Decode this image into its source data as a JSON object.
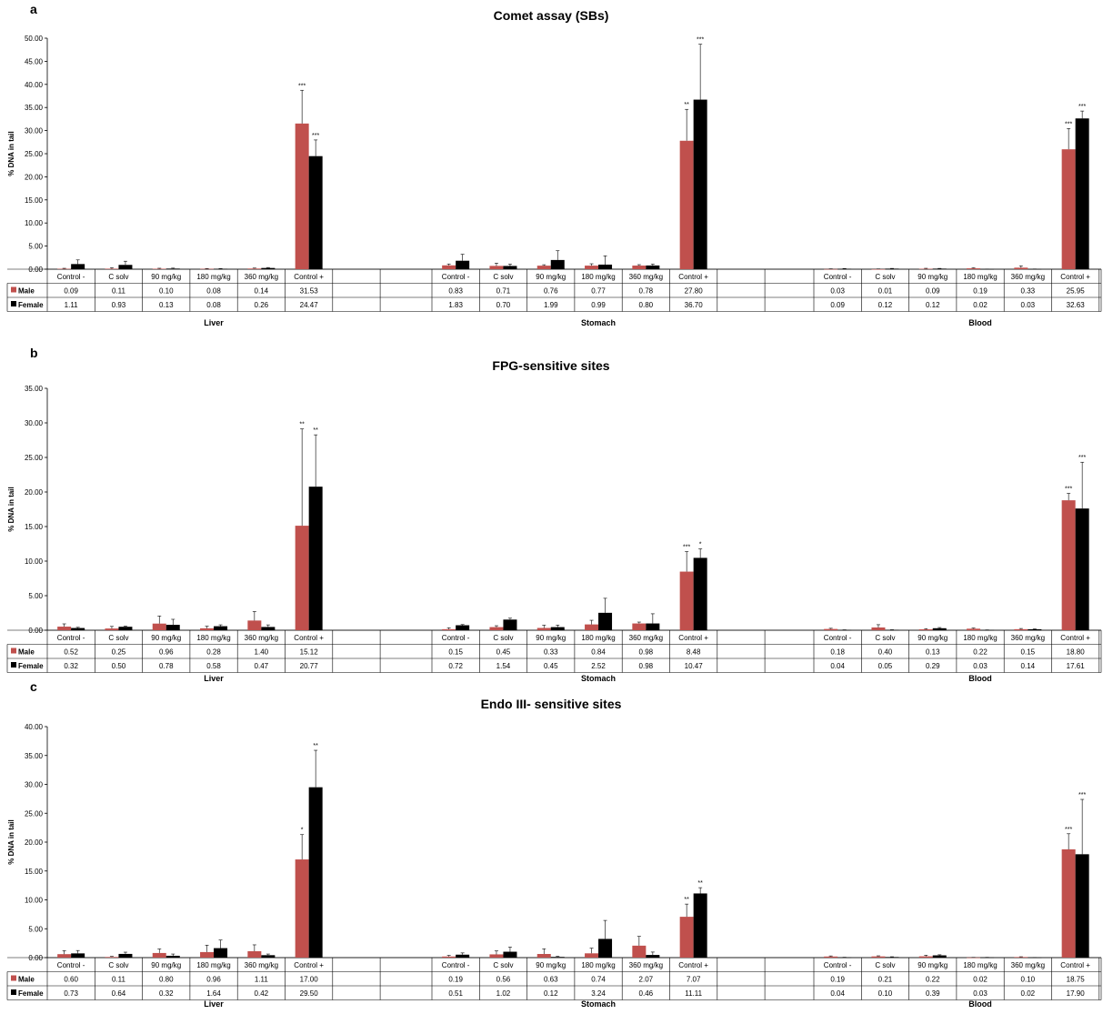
{
  "colors": {
    "male": "#c0504d",
    "female": "#000000",
    "grid": "#000000"
  },
  "chart_data": [
    {
      "type": "bar",
      "panel_letter": "a",
      "title": "Comet assay (SBs)",
      "ylabel": "% DNA in tail",
      "ylim": [
        0,
        50
      ],
      "yticks": [
        "0.00",
        "5.00",
        "10.00",
        "15.00",
        "20.00",
        "25.00",
        "30.00",
        "35.00",
        "40.00",
        "45.00",
        "50.00"
      ],
      "legend": "table",
      "groups": [
        "Liver",
        "Stomach",
        "Blood"
      ],
      "categories": [
        "Control -",
        "C solv",
        "90 mg/kg",
        "180 mg/kg",
        "360 mg/kg",
        "Control +"
      ],
      "series": [
        {
          "name": "Male",
          "color": "#c0504d",
          "values": [
            [
              0.09,
              0.11,
              0.1,
              0.08,
              0.14,
              31.53
            ],
            [
              0.83,
              0.71,
              0.76,
              0.77,
              0.78,
              27.8
            ],
            [
              0.03,
              0.01,
              0.09,
              0.19,
              0.33,
              25.95
            ]
          ],
          "errors": [
            [
              0.1,
              0.2,
              0.1,
              0.05,
              0.1,
              7.2
            ],
            [
              0.3,
              0.6,
              0.2,
              0.4,
              0.2,
              6.8
            ],
            [
              0.05,
              0.05,
              0.1,
              0.1,
              0.4,
              4.5
            ]
          ],
          "labels": [
            [
              0,
              0,
              0,
              0,
              0,
              "***"
            ],
            [
              0,
              0,
              0,
              0,
              0,
              "**"
            ],
            [
              0,
              0,
              0,
              0,
              0,
              "***"
            ]
          ],
          "display": [
            [
              "0.09",
              "0.11",
              "0.10",
              "0.08",
              "0.14",
              "31.53"
            ],
            [
              "0.83",
              "0.71",
              "0.76",
              "0.77",
              "0.78",
              "27.80"
            ],
            [
              "0.03",
              "0.01",
              "0.09",
              "0.19",
              "0.33",
              "25.95"
            ]
          ]
        },
        {
          "name": "Female",
          "color": "#000000",
          "values": [
            [
              1.11,
              0.93,
              0.13,
              0.08,
              0.26,
              24.47
            ],
            [
              1.83,
              0.7,
              1.99,
              0.99,
              0.8,
              36.7
            ],
            [
              0.09,
              0.12,
              0.12,
              0.02,
              0.03,
              32.63
            ]
          ],
          "errors": [
            [
              0.9,
              0.8,
              0.1,
              0.05,
              0.1,
              3.5
            ],
            [
              1.4,
              0.4,
              2.0,
              1.9,
              0.3,
              12.0
            ],
            [
              0.05,
              0.05,
              0.05,
              0.02,
              0.02,
              1.6
            ]
          ],
          "labels": [
            [
              0,
              0,
              0,
              0,
              0,
              "***"
            ],
            [
              0,
              0,
              0,
              0,
              0,
              "***"
            ],
            [
              0,
              0,
              0,
              0,
              0,
              "***"
            ]
          ],
          "display": [
            [
              "1.11",
              "0.93",
              "0.13",
              "0.08",
              "0.26",
              "24.47"
            ],
            [
              "1.83",
              "0.70",
              "1.99",
              "0.99",
              "0.80",
              "36.70"
            ],
            [
              "0.09",
              "0.12",
              "0.12",
              "0.02",
              "0.03",
              "32.63"
            ]
          ]
        }
      ]
    },
    {
      "type": "bar",
      "panel_letter": "b",
      "title": "FPG-sensitive sites",
      "ylabel": "% DNA in tail",
      "ylim": [
        0,
        35
      ],
      "yticks": [
        "0.00",
        "5.00",
        "10.00",
        "15.00",
        "20.00",
        "25.00",
        "30.00",
        "35.00"
      ],
      "legend": "table",
      "groups": [
        "Liver",
        "Stomach",
        "Blood"
      ],
      "categories": [
        "Control -",
        "C solv",
        "90 mg/kg",
        "180 mg/kg",
        "360 mg/kg",
        "Control +"
      ],
      "series": [
        {
          "name": "Male",
          "color": "#c0504d",
          "values": [
            [
              0.52,
              0.25,
              0.96,
              0.28,
              1.4,
              15.12
            ],
            [
              0.15,
              0.45,
              0.33,
              0.84,
              0.98,
              8.48
            ],
            [
              0.18,
              0.4,
              0.13,
              0.22,
              0.15,
              18.8
            ]
          ],
          "errors": [
            [
              0.4,
              0.3,
              1.1,
              0.3,
              1.3,
              14.0
            ],
            [
              0.2,
              0.2,
              0.4,
              0.6,
              0.2,
              2.9
            ],
            [
              0.1,
              0.4,
              0.1,
              0.1,
              0.1,
              1.0
            ]
          ],
          "labels": [
            [
              0,
              0,
              0,
              0,
              0,
              "**"
            ],
            [
              0,
              0,
              0,
              0,
              0,
              "***"
            ],
            [
              0,
              0,
              0,
              0,
              0,
              "***"
            ]
          ],
          "display": [
            [
              "0.52",
              "0.25",
              "0.96",
              "0.28",
              "1.40",
              "15.12"
            ],
            [
              "0.15",
              "0.45",
              "0.33",
              "0.84",
              "0.98",
              "8.48"
            ],
            [
              "0.18",
              "0.40",
              "0.13",
              "0.22",
              "0.15",
              "18.80"
            ]
          ]
        },
        {
          "name": "Female",
          "color": "#000000",
          "values": [
            [
              0.32,
              0.5,
              0.78,
              0.58,
              0.47,
              20.77
            ],
            [
              0.72,
              1.54,
              0.45,
              2.52,
              0.98,
              10.47
            ],
            [
              0.04,
              0.05,
              0.29,
              0.03,
              0.14,
              17.61
            ]
          ],
          "errors": [
            [
              0.1,
              0.1,
              0.8,
              0.2,
              0.3,
              7.5
            ],
            [
              0.1,
              0.2,
              0.3,
              2.1,
              1.4,
              1.3
            ],
            [
              0.02,
              0.02,
              0.1,
              0.02,
              0.05,
              6.7
            ]
          ],
          "labels": [
            [
              0,
              0,
              0,
              0,
              0,
              "**"
            ],
            [
              0,
              0,
              0,
              0,
              0,
              "*"
            ],
            [
              0,
              0,
              0,
              0,
              0,
              "***"
            ]
          ],
          "display": [
            [
              "0.32",
              "0.50",
              "0.78",
              "0.58",
              "0.47",
              "20.77"
            ],
            [
              "0.72",
              "1.54",
              "0.45",
              "2.52",
              "0.98",
              "10.47"
            ],
            [
              "0.04",
              "0.05",
              "0.29",
              "0.03",
              "0.14",
              "17.61"
            ]
          ]
        }
      ]
    },
    {
      "type": "bar",
      "panel_letter": "c",
      "title": "Endo III- sensitive sites",
      "ylabel": "% DNA in tail",
      "ylim": [
        0,
        40
      ],
      "yticks": [
        "0.00",
        "5.00",
        "10.00",
        "15.00",
        "20.00",
        "25.00",
        "30.00",
        "35.00",
        "40.00"
      ],
      "legend": "table",
      "groups": [
        "Liver",
        "Stomach",
        "Blood"
      ],
      "categories": [
        "Control -",
        "C solv",
        "90 mg/kg",
        "180 mg/kg",
        "360 mg/kg",
        "Control +"
      ],
      "series": [
        {
          "name": "Male",
          "color": "#c0504d",
          "values": [
            [
              0.6,
              0.11,
              0.8,
              0.96,
              1.11,
              17.0
            ],
            [
              0.19,
              0.56,
              0.63,
              0.74,
              2.07,
              7.07
            ],
            [
              0.19,
              0.21,
              0.22,
              0.02,
              0.1,
              18.75
            ]
          ],
          "errors": [
            [
              0.6,
              0.1,
              0.7,
              1.2,
              1.1,
              4.3
            ],
            [
              0.2,
              0.6,
              0.9,
              0.9,
              1.6,
              2.2
            ],
            [
              0.1,
              0.1,
              0.2,
              0.02,
              0.05,
              2.7
            ]
          ],
          "labels": [
            [
              0,
              0,
              0,
              0,
              0,
              "*"
            ],
            [
              0,
              0,
              0,
              0,
              0,
              "**"
            ],
            [
              0,
              0,
              0,
              0,
              0,
              "***"
            ]
          ],
          "display": [
            [
              "0.60",
              "0.11",
              "0.80",
              "0.96",
              "1.11",
              "17.00"
            ],
            [
              "0.19",
              "0.56",
              "0.63",
              "0.74",
              "2.07",
              "7.07"
            ],
            [
              "0.19",
              "0.21",
              "0.22",
              "0.02",
              "0.10",
              "18.75"
            ]
          ]
        },
        {
          "name": "Female",
          "color": "#000000",
          "values": [
            [
              0.73,
              0.64,
              0.32,
              1.64,
              0.42,
              29.5
            ],
            [
              0.51,
              1.02,
              0.12,
              3.24,
              0.46,
              11.11
            ],
            [
              0.04,
              0.1,
              0.39,
              0.03,
              0.02,
              17.9
            ]
          ],
          "errors": [
            [
              0.5,
              0.3,
              0.3,
              1.4,
              0.2,
              6.4
            ],
            [
              0.3,
              0.8,
              0.1,
              3.2,
              0.5,
              1.0
            ],
            [
              0.02,
              0.05,
              0.1,
              0.02,
              0.01,
              9.5
            ]
          ],
          "labels": [
            [
              0,
              0,
              0,
              0,
              0,
              "**"
            ],
            [
              0,
              0,
              0,
              0,
              0,
              "**"
            ],
            [
              0,
              0,
              0,
              0,
              0,
              "***"
            ]
          ],
          "display": [
            [
              "0.73",
              "0.64",
              "0.32",
              "1.64",
              "0.42",
              "29.50"
            ],
            [
              "0.51",
              "1.02",
              "0.12",
              "3.24",
              "0.46",
              "11.11"
            ],
            [
              "0.04",
              "0.10",
              "0.39",
              "0.03",
              "0.02",
              "17.90"
            ]
          ]
        }
      ]
    }
  ]
}
